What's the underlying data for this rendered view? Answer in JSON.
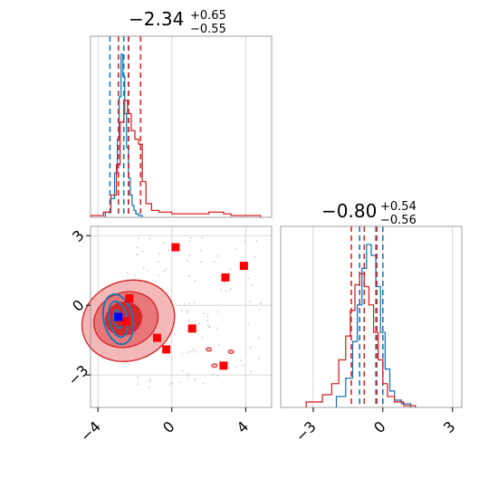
{
  "colors": {
    "blue": "#1f77b4",
    "red": "#d62728",
    "red_fill_light": "#f4b8b9",
    "red_fill_mid": "#e8777a",
    "red_fill_dark": "#d62728",
    "marker_red": "#ff0000",
    "marker_blue": "#0000ff",
    "grid": "#cfcfcf",
    "frame": "#8a8a8a"
  },
  "chart_data": [
    {
      "type": "histogram",
      "panel": "param1-marginal",
      "title": {
        "median": "−2.34",
        "plus": "+0.65",
        "minus": "−0.55"
      },
      "xlim": [
        -4.4,
        5.4
      ],
      "grid": true,
      "series": [
        {
          "color": "blue",
          "bin_edges": [
            -3.6,
            -3.3,
            -3.1,
            -2.95,
            -2.85,
            -2.75,
            -2.65,
            -2.55,
            -2.45,
            -2.35,
            -2.25,
            -2.15,
            -2.05,
            -1.95,
            -1.8,
            -1.6
          ],
          "counts": [
            0.02,
            0.1,
            0.25,
            0.45,
            0.7,
            0.95,
            0.82,
            0.6,
            0.4,
            0.22,
            0.12,
            0.06,
            0.03,
            0.01,
            0.0
          ],
          "quantiles": [
            -3.35,
            -2.6,
            -2.35
          ]
        },
        {
          "color": "red",
          "bin_edges": [
            -4.4,
            -3.7,
            -3.3,
            -3.0,
            -2.8,
            -2.6,
            -2.4,
            -2.2,
            -2.0,
            -1.8,
            -1.6,
            -1.4,
            -1.1,
            -0.7,
            0.0,
            1.0,
            2.0,
            2.8,
            3.2,
            4.0,
            4.8
          ],
          "counts": [
            0.0,
            0.02,
            0.12,
            0.3,
            0.55,
            0.68,
            0.6,
            0.5,
            0.45,
            0.42,
            0.2,
            0.07,
            0.03,
            0.02,
            0.01,
            0.01,
            0.02,
            0.01,
            0.0,
            0.0
          ],
          "quantiles": [
            -2.89,
            -2.34,
            -1.69
          ]
        }
      ]
    },
    {
      "type": "scatter",
      "panel": "joint",
      "xlim": [
        -4.4,
        5.4
      ],
      "ylim": [
        -4.4,
        3.4
      ],
      "xticks": [
        "−4",
        "0",
        "4"
      ],
      "yticks": [
        "3",
        "0",
        "−3"
      ],
      "grid": true,
      "red_markers": [
        {
          "x": 0.2,
          "y": 2.5
        },
        {
          "x": 3.9,
          "y": 1.7
        },
        {
          "x": 2.9,
          "y": 1.2
        },
        {
          "x": -2.3,
          "y": 0.3
        },
        {
          "x": -2.5,
          "y": -0.7
        },
        {
          "x": -0.8,
          "y": -1.4
        },
        {
          "x": 1.1,
          "y": -1.0
        },
        {
          "x": -0.3,
          "y": -1.9
        },
        {
          "x": 2.8,
          "y": -2.6
        }
      ],
      "blue_markers": [
        {
          "x": -2.9,
          "y": -0.5
        }
      ],
      "red_density_levels": 3,
      "blue_density_levels": 3
    },
    {
      "type": "histogram",
      "panel": "param2-marginal",
      "title": {
        "median": "−0.80",
        "plus": "+0.54",
        "minus": "−0.56"
      },
      "xlim": [
        -4.4,
        3.4
      ],
      "xticks": [
        "−3",
        "0",
        "3"
      ],
      "grid": true,
      "series": [
        {
          "color": "blue",
          "bin_edges": [
            -2.0,
            -1.6,
            -1.3,
            -1.1,
            -0.9,
            -0.7,
            -0.5,
            -0.3,
            -0.1,
            0.1,
            0.3,
            0.5,
            0.8,
            1.2
          ],
          "counts": [
            0.05,
            0.15,
            0.35,
            0.55,
            0.75,
            0.88,
            0.82,
            0.65,
            0.4,
            0.2,
            0.08,
            0.03,
            0.01
          ],
          "quantiles": [
            -1.0,
            -0.3,
            0.0
          ]
        },
        {
          "color": "red",
          "bin_edges": [
            -3.3,
            -2.6,
            -2.2,
            -1.9,
            -1.6,
            -1.4,
            -1.2,
            -1.0,
            -0.8,
            -0.6,
            -0.4,
            -0.2,
            0.0,
            0.2,
            0.5,
            0.9,
            1.4
          ],
          "counts": [
            0.02,
            0.06,
            0.12,
            0.25,
            0.38,
            0.52,
            0.66,
            0.72,
            0.65,
            0.55,
            0.4,
            0.25,
            0.12,
            0.05,
            0.02,
            0.0
          ],
          "quantiles": [
            -1.36,
            -0.8,
            -0.26
          ]
        }
      ]
    }
  ]
}
